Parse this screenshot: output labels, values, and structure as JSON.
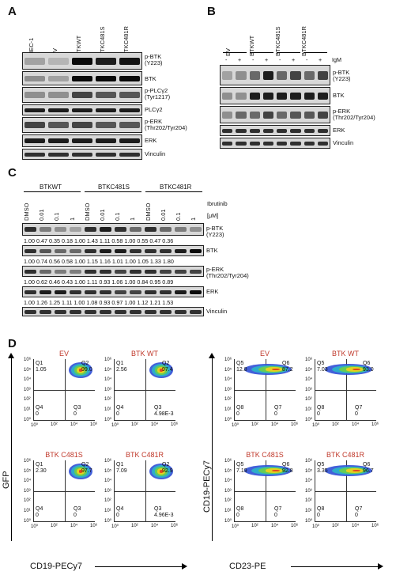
{
  "panels": {
    "A": "A",
    "B": "B",
    "C": "C",
    "D": "D"
  },
  "panelA": {
    "lanes": [
      "MEC-1",
      "EV",
      "BTKWT",
      "BTKC481S",
      "BTKC481R"
    ],
    "rows": [
      "p-BTK\n(Y223)",
      "BTK",
      "p-PLCγ2\n(Tyr1217)",
      "PLCγ2",
      "p-ERK\n(Thr202/Tyr204)",
      "ERK",
      "Vinculin"
    ]
  },
  "panelB": {
    "groups": [
      "EV",
      "BTKWT",
      "BTKC481S",
      "BTKC481R"
    ],
    "signs": [
      "-",
      "+",
      "-",
      "+",
      "-",
      "+",
      "-",
      "+"
    ],
    "treatment": "IgM",
    "rows": [
      "p-BTK\n(Y223)",
      "BTK",
      "p-ERK\n(Thr202/Tyr204)",
      "ERK",
      "Vinculin"
    ]
  },
  "panelC": {
    "groups": [
      "BTKWT",
      "BTKC481S",
      "BTKC481R"
    ],
    "doses": [
      "DMSO",
      "0.01",
      "0.1",
      "1",
      "DMSO",
      "0.01",
      "0.1",
      "1",
      "DMSO",
      "0.01",
      "0.1",
      "1"
    ],
    "treatment": "Ibrutinib",
    "unit": "[μM]",
    "rows": [
      "p-BTK\n(Y223)",
      "BTK",
      "p-ERK\n(Thr202/Tyr204)",
      "ERK",
      "Vinculin"
    ],
    "quant": [
      "1.00  0.47  0.35  0.18   1.00  1.43  1.11  0.58   1.00  0.55  0.47  0.36",
      "1.00  0.74  0.56  0.58   1.00  1.15  1.16  1.01   1.00  1.05  1.33  1.80",
      "1.00  0.62  0.46  0.43   1.00  1.11  0.93  1.06   1.00  0.84  0.95  0.89",
      "1.00  1.26  1.25  1.11   1.00  1.08  0.93  0.97   1.00  1.12  1.21  1.53"
    ]
  },
  "panelD": {
    "left": {
      "yaxis": "GFP",
      "xaxis": "CD19-PECy7",
      "plots": [
        {
          "title": "EV",
          "q1": "Q1",
          "q1v": "1.05",
          "q2": "Q2",
          "q2v": "99.0",
          "q3": "Q3",
          "q3v": "0",
          "q4": "Q4",
          "q4v": "0"
        },
        {
          "title": "BTK WT",
          "q1": "Q1",
          "q1v": "2.56",
          "q2": "Q2",
          "q2v": "97.4",
          "q3": "Q3",
          "q3v": "4.98E-3",
          "q4": "Q4",
          "q4v": "0"
        },
        {
          "title": "BTK C481S",
          "q1": "Q1",
          "q1v": "2.30",
          "q2": "Q2",
          "q2v": "97.7",
          "q3": "Q3",
          "q3v": "0",
          "q4": "Q4",
          "q4v": "0"
        },
        {
          "title": "BTK C481R",
          "q1": "Q1",
          "q1v": "7.09",
          "q2": "Q2",
          "q2v": "92.9",
          "q3": "Q3",
          "q3v": "4.96E-3",
          "q4": "Q4",
          "q4v": "0"
        }
      ]
    },
    "right": {
      "yaxis": "CD19-PECy7",
      "xaxis": "CD23-PE",
      "plots": [
        {
          "title": "EV",
          "q1": "Q5",
          "q1v": "12.8",
          "q2": "Q6",
          "q2v": "87.2",
          "q3": "Q7",
          "q3v": "0",
          "q4": "Q8",
          "q4v": "0"
        },
        {
          "title": "BTK WT",
          "q1": "Q5",
          "q1v": "7.03",
          "q2": "Q6",
          "q2v": "93.0",
          "q3": "Q7",
          "q3v": "0",
          "q4": "Q8",
          "q4v": "0"
        },
        {
          "title": "BTK C481S",
          "q1": "Q5",
          "q1v": "7.19",
          "q2": "Q6",
          "q2v": "92.8",
          "q3": "Q7",
          "q3v": "0",
          "q4": "Q8",
          "q4v": "0"
        },
        {
          "title": "BTK C481R",
          "q1": "Q5",
          "q1v": "3.35",
          "q2": "Q6",
          "q2v": "96.7",
          "q3": "Q7",
          "q3v": "0",
          "q4": "Q8",
          "q4v": "0"
        }
      ]
    },
    "yticks": [
      "10⁶",
      "10⁵",
      "10⁴",
      "10³",
      "10²",
      "10¹",
      "10⁰"
    ],
    "xticks": [
      "10⁰",
      "10²",
      "10⁴",
      "10⁶"
    ]
  }
}
